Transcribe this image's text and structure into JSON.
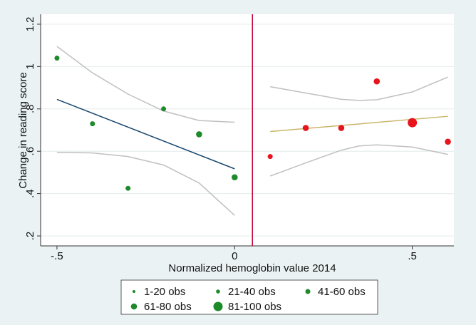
{
  "chart_data": {
    "type": "scatter",
    "x_label": "Normalized hemoglobin value 2014",
    "y_label": "Change in reading score",
    "xlim": [
      -0.546,
      0.617
    ],
    "ylim": [
      0.153,
      1.247
    ],
    "xticks": [
      {
        "value": -0.5,
        "label": "-.5"
      },
      0,
      {
        "value": 0.5,
        "label": ".5"
      }
    ],
    "yticks": [
      {
        "value": 0.2,
        "label": ".2"
      },
      {
        "value": 0.4,
        "label": ".4"
      },
      {
        "value": 0.6,
        "label": ".6"
      },
      {
        "value": 0.8,
        "label": ".8"
      },
      1,
      {
        "value": 1.2,
        "label": "1.2"
      }
    ],
    "grid": true,
    "cutoff": 0.05,
    "cutoff_color": "#c10534",
    "left_color": "#1e8a2a",
    "right_color": "#e8141c",
    "series": [
      {
        "name": "1-20 obs",
        "color": "#1e8a2a",
        "marker_size": 2,
        "x": [],
        "values": []
      },
      {
        "name": "21-40 obs",
        "color": "#1e8a2a",
        "marker_size": 2.8,
        "x": [],
        "values": []
      },
      {
        "name": "41-60 obs",
        "color": "#1e8a2a",
        "marker_size": 3.5,
        "x": [
          -0.5,
          -0.4,
          -0.3,
          -0.2,
          0.1
        ],
        "values": [
          1.04,
          0.73,
          0.425,
          0.8,
          0.575
        ]
      },
      {
        "name": "61-80 obs",
        "color": "#1e8a2a",
        "marker_size": 4.3,
        "x": [
          -0.1,
          0,
          0.2,
          0.3,
          0.4,
          0.6
        ],
        "values": [
          0.68,
          0.477,
          0.71,
          0.71,
          0.93,
          0.645
        ]
      },
      {
        "name": "81-100 obs",
        "color": "#1e8a2a",
        "marker_size": 6.5,
        "x": [
          0.5
        ],
        "values": [
          0.735
        ]
      }
    ],
    "fits": [
      {
        "color": "#1a476f",
        "x": [
          -0.5,
          0
        ],
        "values": [
          0.845,
          0.517
        ]
      },
      {
        "color": "#c9b66a",
        "x": [
          0.1,
          0.6
        ],
        "values": [
          0.693,
          0.765
        ]
      }
    ],
    "ci_color": "#c0c0c0",
    "ci_bands": [
      {
        "x": [
          -0.5,
          -0.4,
          -0.3,
          -0.2,
          -0.1,
          0
        ],
        "upper": [
          1.095,
          0.97,
          0.87,
          0.79,
          0.745,
          0.737
        ],
        "lower": [
          0.595,
          0.592,
          0.575,
          0.535,
          0.45,
          0.297
        ]
      },
      {
        "x": [
          0.1,
          0.2,
          0.3,
          0.35,
          0.4,
          0.5,
          0.6
        ],
        "upper": [
          0.905,
          0.875,
          0.845,
          0.84,
          0.843,
          0.88,
          0.95
        ],
        "lower": [
          0.483,
          0.545,
          0.605,
          0.625,
          0.63,
          0.62,
          0.585
        ]
      }
    ]
  }
}
